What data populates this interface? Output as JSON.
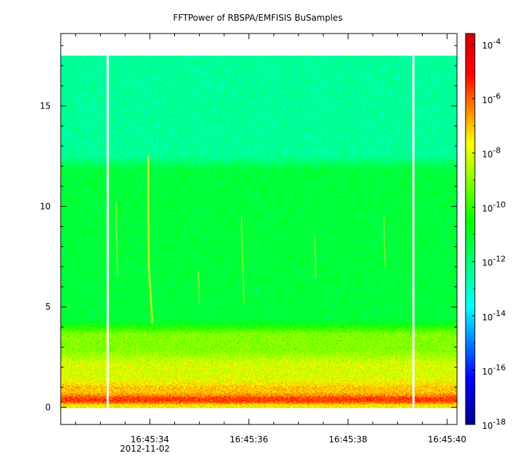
{
  "chart_data": {
    "type": "heatmap",
    "title": "FFTPower of RBSPA/EMFISIS  BuSamples",
    "xlabel": "",
    "ylabel": "",
    "x_ticks": [
      {
        "t": 34,
        "label": "16:45:34"
      },
      {
        "t": 36,
        "label": "16:45:36"
      },
      {
        "t": 38,
        "label": "16:45:38"
      },
      {
        "t": 40,
        "label": "16:45:40"
      }
    ],
    "x_minor_ticks": [
      32.5,
      33,
      33.5,
      34.5,
      35,
      35.5,
      36.5,
      37,
      37.5,
      38.5,
      39,
      39.5
    ],
    "x_date_label": "2012-11-02",
    "xlim": [
      32.2,
      40.2
    ],
    "y_ticks": [
      {
        "v": 0,
        "label": "0"
      },
      {
        "v": 5,
        "label": "5"
      },
      {
        "v": 10,
        "label": "10"
      },
      {
        "v": 15,
        "label": "15"
      }
    ],
    "ylim": [
      -0.85,
      18.6
    ],
    "data_extent_y": [
      0,
      17.5
    ],
    "gaps_seconds": [
      33.15,
      39.32
    ],
    "bands": [
      {
        "from": 0.0,
        "to": 0.2,
        "log_power": -7.5
      },
      {
        "from": 0.2,
        "to": 0.6,
        "log_power": -5.6
      },
      {
        "from": 0.6,
        "to": 1.2,
        "log_power": -7.0
      },
      {
        "from": 1.2,
        "to": 2.5,
        "log_power": -8.0
      },
      {
        "from": 2.5,
        "to": 4.0,
        "log_power": -9.0
      },
      {
        "from": 4.0,
        "to": 12.2,
        "log_power": -11.2
      },
      {
        "from": 12.2,
        "to": 17.5,
        "log_power": -12.4
      }
    ],
    "whistler_traces": [
      {
        "points": [
          [
            34.05,
            4.2
          ],
          [
            33.98,
            7.0
          ],
          [
            33.97,
            10.0
          ],
          [
            33.97,
            12.5
          ]
        ]
      },
      {
        "points": [
          [
            33.35,
            6.5
          ],
          [
            33.33,
            8.5
          ],
          [
            33.32,
            10.2
          ]
        ]
      },
      {
        "points": [
          [
            35.0,
            5.2
          ],
          [
            34.98,
            6.8
          ]
        ]
      },
      {
        "points": [
          [
            35.9,
            5.2
          ],
          [
            35.87,
            7.5
          ],
          [
            35.85,
            9.5
          ]
        ]
      },
      {
        "points": [
          [
            37.35,
            6.5
          ],
          [
            37.33,
            8.5
          ]
        ]
      },
      {
        "points": [
          [
            38.75,
            7.0
          ],
          [
            38.72,
            9.5
          ]
        ]
      }
    ],
    "colorbar": {
      "scale": "log",
      "range_exponent": [
        -18,
        -3.6
      ],
      "tick_exponents": [
        -4,
        -6,
        -8,
        -10,
        -12,
        -14,
        -16,
        -18
      ],
      "base_label": "10",
      "colors": [
        "#00008f",
        "#0000ff",
        "#00ffff",
        "#00ff00",
        "#ffff00",
        "#ff0000",
        "#cc0000"
      ]
    }
  }
}
